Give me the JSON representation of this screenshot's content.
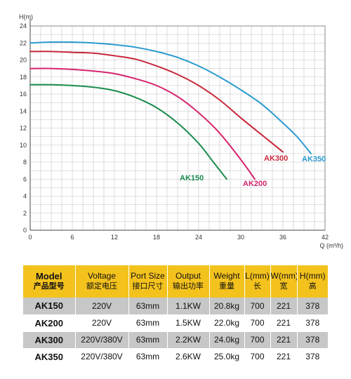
{
  "chart_data": {
    "type": "line",
    "ylabel": "H(m)",
    "xlabel": "Q (m³/h)",
    "xlim": [
      0,
      42
    ],
    "ylim": [
      0,
      24
    ],
    "xticks": [
      0,
      6,
      12,
      18,
      24,
      30,
      36,
      42
    ],
    "yticks": [
      0,
      2,
      4,
      6,
      8,
      10,
      12,
      14,
      16,
      18,
      20,
      22,
      24
    ],
    "grid": true,
    "series": [
      {
        "name": "AK150",
        "color": "#1a8c4e",
        "x": [
          0,
          3,
          6,
          9,
          12,
          15,
          18,
          21,
          24,
          26,
          28
        ],
        "y": [
          17.1,
          17.1,
          17.0,
          16.8,
          16.4,
          15.6,
          14.4,
          12.6,
          10.2,
          8.1,
          6.0
        ]
      },
      {
        "name": "AK200",
        "color": "#d6246e",
        "x": [
          0,
          3,
          6,
          9,
          12,
          15,
          18,
          21,
          24,
          27,
          30,
          32
        ],
        "y": [
          19.0,
          19.0,
          18.9,
          18.7,
          18.4,
          17.8,
          17.0,
          15.7,
          13.8,
          11.4,
          8.3,
          6.0
        ]
      },
      {
        "name": "AK300",
        "color": "#c8283a",
        "x": [
          0,
          3,
          6,
          9,
          12,
          15,
          18,
          21,
          24,
          27,
          30,
          33,
          36
        ],
        "y": [
          21.0,
          21.0,
          20.9,
          20.8,
          20.5,
          20.1,
          19.3,
          18.3,
          17.0,
          15.3,
          13.2,
          11.2,
          9.2
        ]
      },
      {
        "name": "AK350",
        "color": "#2a9bd0",
        "x": [
          0,
          3,
          6,
          9,
          12,
          15,
          18,
          21,
          24,
          27,
          30,
          33,
          36,
          38,
          40
        ],
        "y": [
          22.0,
          22.1,
          22.1,
          22.0,
          21.8,
          21.5,
          21.0,
          20.3,
          19.3,
          18.0,
          16.5,
          14.8,
          12.6,
          11.0,
          9.0
        ]
      }
    ]
  },
  "table": {
    "headers": [
      {
        "en": "Model",
        "zh": "产品型号"
      },
      {
        "en": "Voltage",
        "zh": "额定电压"
      },
      {
        "en": "Port Size",
        "zh": "接口尺寸"
      },
      {
        "en": "Output",
        "zh": "输出功率"
      },
      {
        "en": "Weight",
        "zh": "重量"
      },
      {
        "en": "L(mm)",
        "zh": "长"
      },
      {
        "en": "W(mm)",
        "zh": "宽"
      },
      {
        "en": "H(mm)",
        "zh": "高"
      }
    ],
    "rows": [
      [
        "AK150",
        "220V",
        "63mm",
        "1.1KW",
        "20.8kg",
        "700",
        "221",
        "378"
      ],
      [
        "AK200",
        "220V",
        "63mm",
        "1.5KW",
        "22.0kg",
        "700",
        "221",
        "378"
      ],
      [
        "AK300",
        "220V/380V",
        "63mm",
        "2.2KW",
        "24.0kg",
        "700",
        "221",
        "378"
      ],
      [
        "AK350",
        "220V/380V",
        "63mm",
        "2.6KW",
        "25.0kg",
        "700",
        "221",
        "378"
      ]
    ]
  }
}
